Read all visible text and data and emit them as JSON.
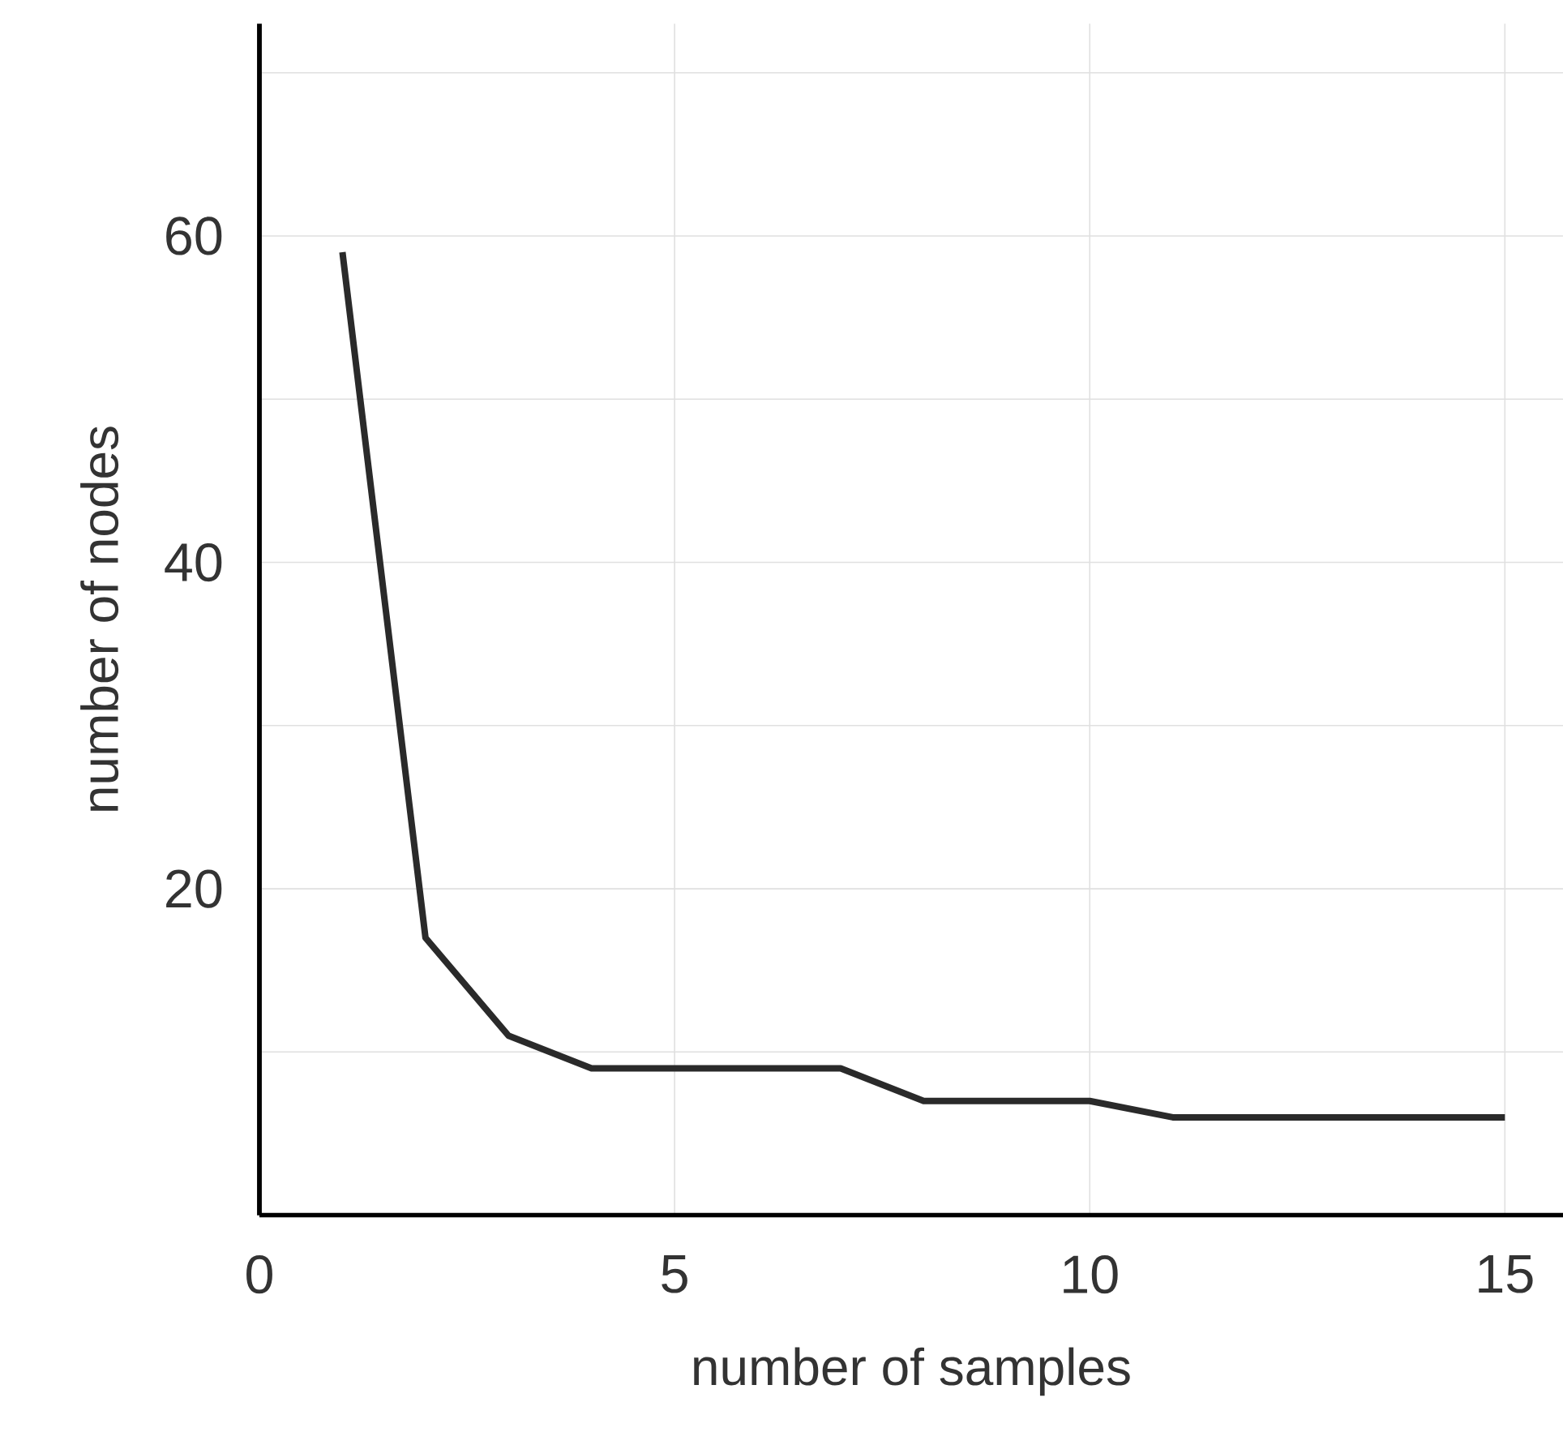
{
  "chart_data": {
    "type": "line",
    "xlabel": "number of samples",
    "ylabel": "number of nodes",
    "x": [
      1,
      2,
      3,
      4,
      5,
      6,
      7,
      8,
      9,
      10,
      11,
      12,
      13,
      14,
      15
    ],
    "values": [
      59,
      17,
      11,
      9,
      9,
      9,
      9,
      7,
      7,
      7,
      6,
      6,
      6,
      6,
      6
    ],
    "color": "#2a2a2a",
    "xlim": [
      0,
      15.7
    ],
    "ylim": [
      0,
      73
    ],
    "xticks": [
      0,
      5,
      10,
      15
    ],
    "yticks": [
      {
        "value": 10,
        "label": null
      },
      20,
      {
        "value": 30,
        "label": null
      },
      40,
      {
        "value": 50,
        "label": null
      },
      60,
      {
        "value": 70,
        "label": null
      }
    ],
    "grid": true
  }
}
